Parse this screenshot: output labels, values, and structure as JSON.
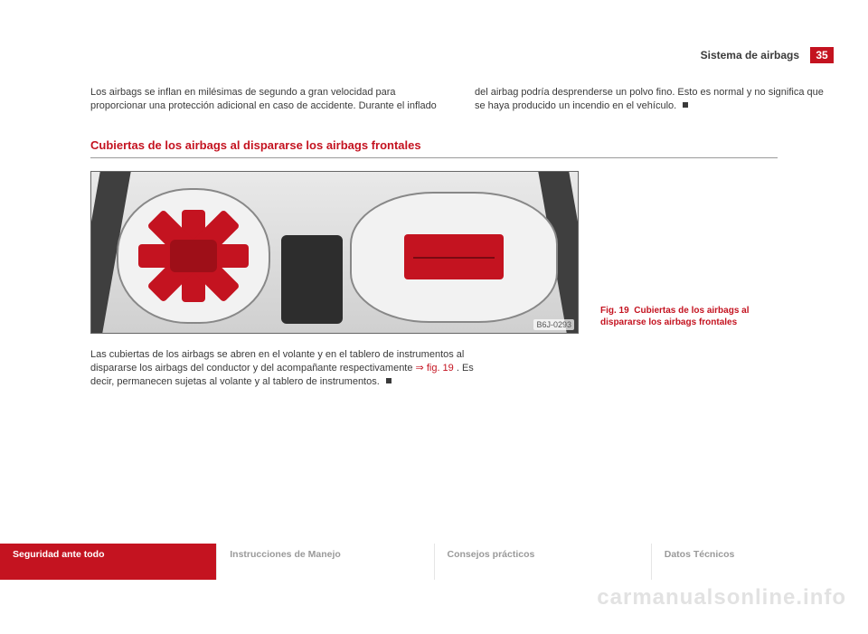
{
  "page": {
    "section_header": "Sistema de airbags",
    "page_number": "35"
  },
  "intro": {
    "left": "Los airbags se inflan en milésimas de segundo a gran velocidad para proporcionar una protección adicional en caso de accidente. Durante el inflado",
    "right": "del airbag podría desprenderse un polvo fino. Esto es normal y no significa que se haya producido un incendio en el vehículo."
  },
  "section_title": "Cubiertas de los airbags al dispararse los airbags frontales",
  "figure": {
    "id": "B6J-0293",
    "caption_prefix": "Fig. 19",
    "caption_text": "Cubiertas de los airbags al dispararse los airbags frontales",
    "colors": {
      "accent": "#c41320"
    }
  },
  "body": {
    "p1a": "Las cubiertas de los airbags se abren en el volante y en el tablero de instrumentos al dispararse los airbags del conductor y del acompañante respectivamente ",
    "p1_ref": "⇒ fig. 19",
    "p1b": ". Es decir, permanecen sujetas al volante y al tablero de instrumentos."
  },
  "tabs": {
    "t1": "Seguridad ante todo",
    "t2": "Instrucciones de Manejo",
    "t3": "Consejos prácticos",
    "t4": "Datos Técnicos"
  },
  "watermark": "carmanualsonline.info"
}
